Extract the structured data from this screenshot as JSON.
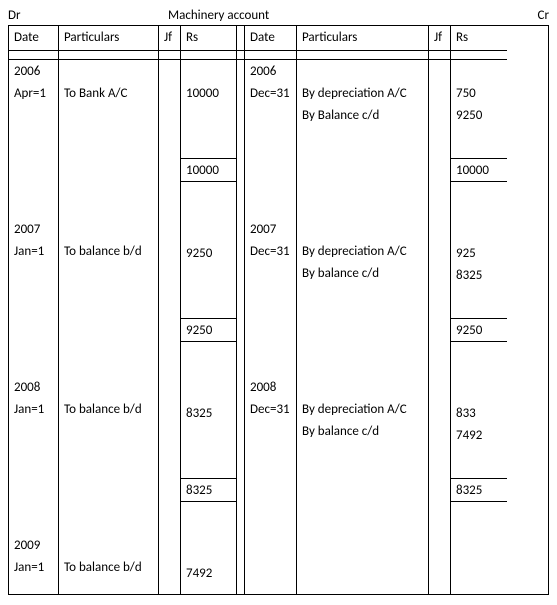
{
  "header": {
    "dr": "Dr",
    "title": "Machinery account",
    "cr": "Cr"
  },
  "columns": {
    "date": "Date",
    "particulars": "Particulars",
    "jf": "Jf",
    "rs": "Rs"
  },
  "left": {
    "y2006": {
      "year": "2006",
      "date1": "Apr=1",
      "part1": "To Bank A/C",
      "amt1": "10000",
      "total": "10000"
    },
    "y2007": {
      "year": "2007",
      "date1": "Jan=1",
      "part1": "To balance b/d",
      "amt1": "9250",
      "total": "9250"
    },
    "y2008": {
      "year": "2008",
      "date1": "Jan=1",
      "part1": "To balance b/d",
      "amt1": "8325",
      "total": "8325"
    },
    "y2009": {
      "year": "2009",
      "date1": "Jan=1",
      "part1": "To balance b/d",
      "amt1": "7492"
    }
  },
  "right": {
    "y2006": {
      "year": "2006",
      "date1": "Dec=31",
      "part1": "By depreciation A/C",
      "part2": "By Balance c/d",
      "amt1": "750",
      "amt2": "9250",
      "total": "10000"
    },
    "y2007": {
      "year": "2007",
      "date1": "Dec=31",
      "part1": "By depreciation A/C",
      "part2": "By balance c/d",
      "amt1": "925",
      "amt2": "8325",
      "total": "9250"
    },
    "y2008": {
      "year": "2008",
      "date1": "Dec=31",
      "part1": "By depreciation A/C",
      "part2": "By balance c/d",
      "amt1": "833",
      "amt2": "7492",
      "total": "8325"
    }
  }
}
